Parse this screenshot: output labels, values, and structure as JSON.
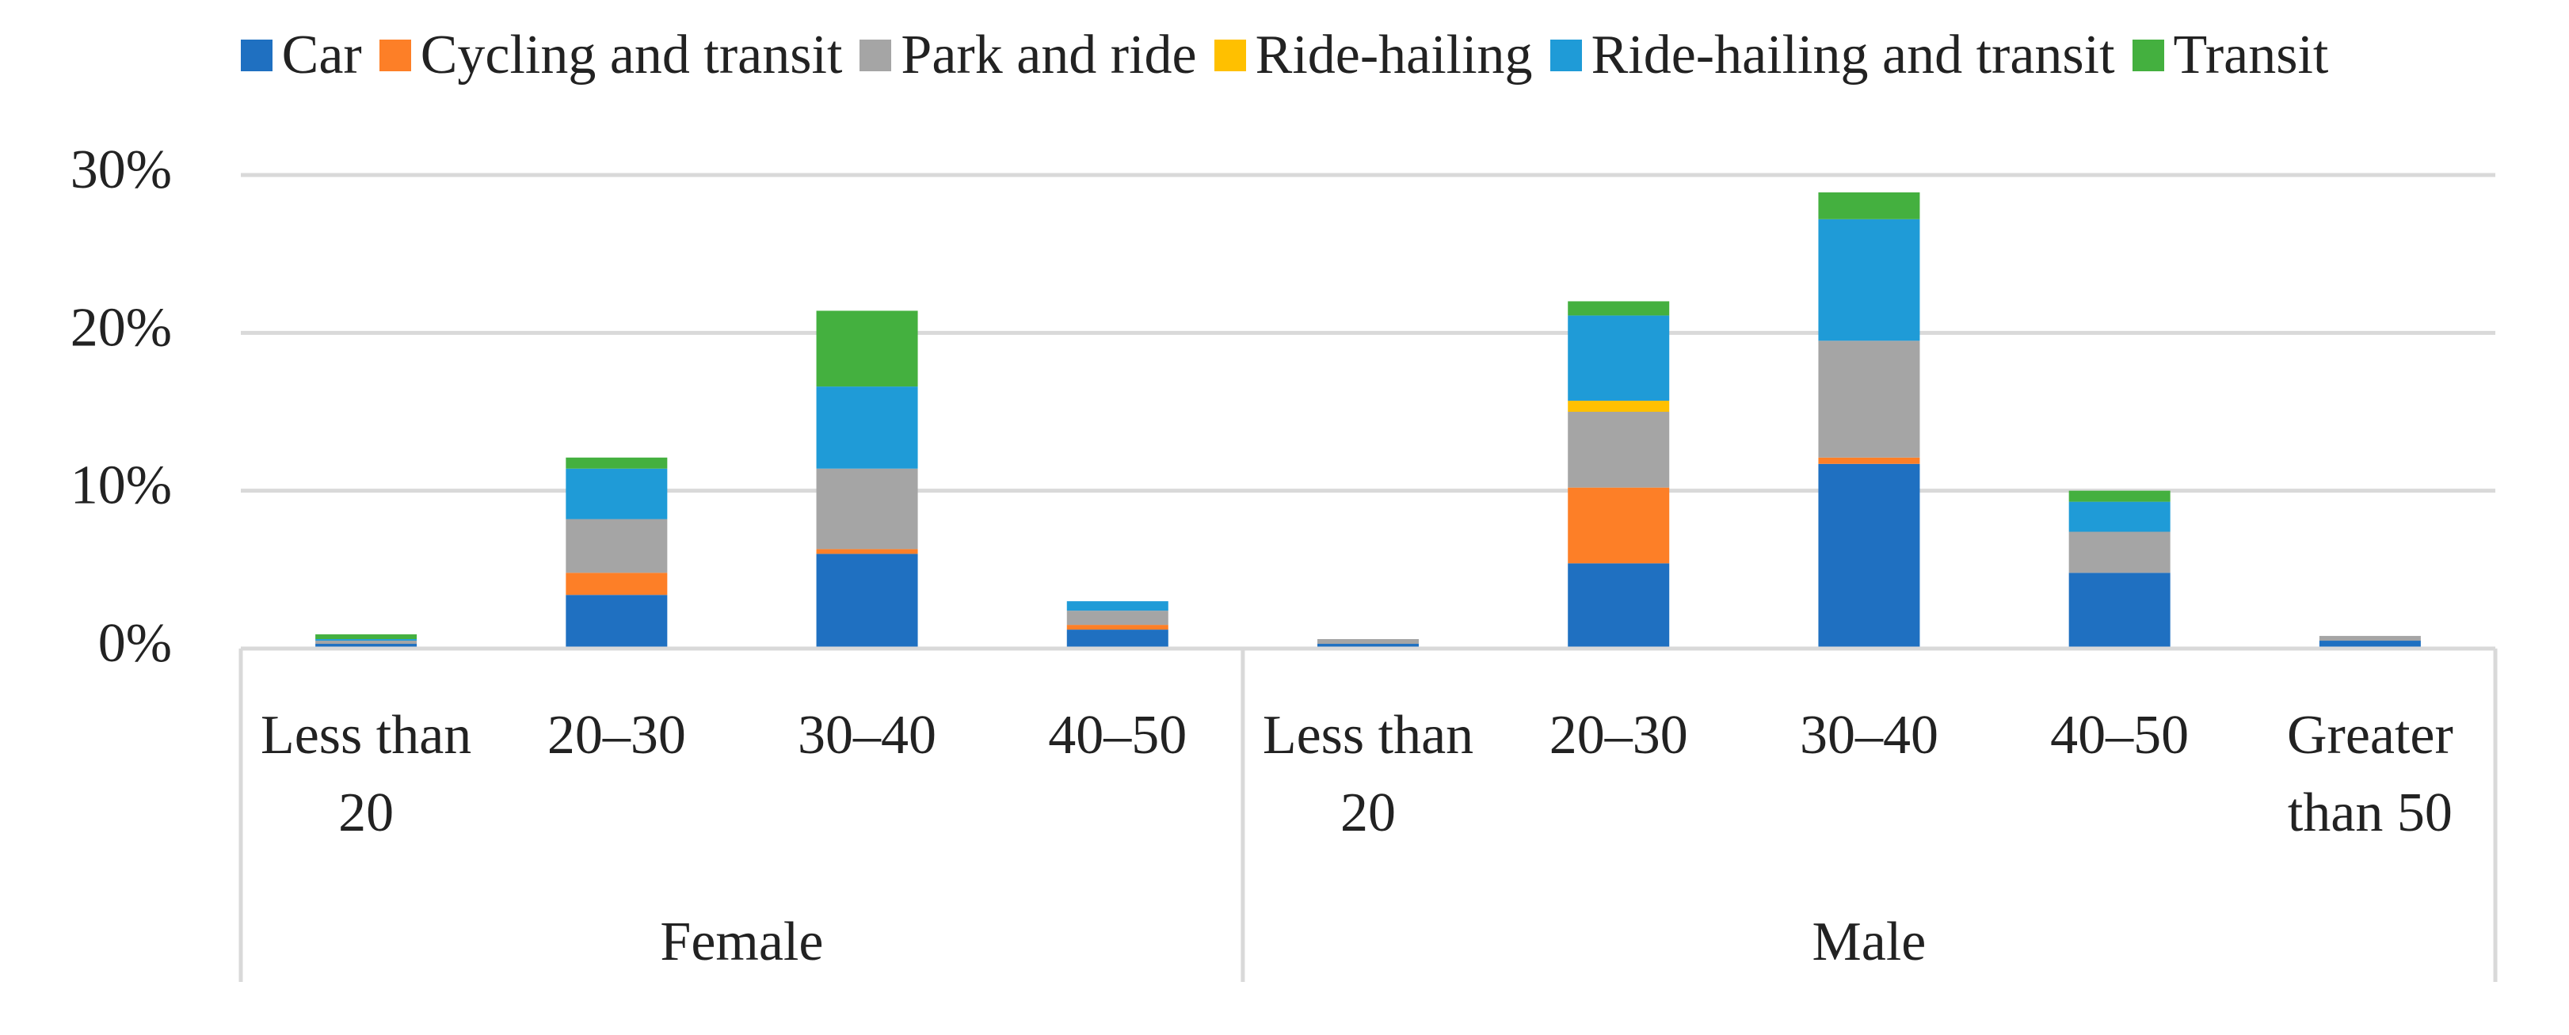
{
  "chart_data": {
    "type": "stacked_bar",
    "groups": [
      {
        "name": "Female",
        "categories": [
          "Less than 20",
          "20–30",
          "30–40",
          "40–50"
        ]
      },
      {
        "name": "Male",
        "categories": [
          "Less than 20",
          "20–30",
          "30–40",
          "40–50",
          "Greater than 50"
        ]
      }
    ],
    "series": [
      {
        "name": "Car",
        "color": "#1f70c1",
        "values": [
          0.3,
          3.4,
          6.0,
          1.2,
          0.3,
          5.4,
          11.7,
          4.8,
          0.5
        ]
      },
      {
        "name": "Cycling and transit",
        "color": "#fd7f27",
        "values": [
          0,
          1.4,
          0.3,
          0.3,
          0,
          4.8,
          0.4,
          0,
          0
        ]
      },
      {
        "name": "Park and ride",
        "color": "#a5a5a5",
        "values": [
          0.2,
          3.4,
          5.1,
          0.9,
          0.3,
          4.8,
          7.4,
          2.6,
          0.3
        ]
      },
      {
        "name": "Ride-hailing",
        "color": "#ffc000",
        "values": [
          0,
          0,
          0,
          0,
          0,
          0.7,
          0,
          0,
          0
        ]
      },
      {
        "name": "Ride-hailing and transit",
        "color": "#1f9bd7",
        "values": [
          0.1,
          3.2,
          5.2,
          0.6,
          0,
          5.4,
          7.7,
          1.9,
          0
        ]
      },
      {
        "name": "Transit",
        "color": "#44b03f",
        "values": [
          0.3,
          0.7,
          4.8,
          0,
          0,
          0.9,
          1.7,
          0.7,
          0
        ]
      }
    ],
    "ylim": [
      0,
      30
    ],
    "yticks": [
      {
        "value": 0,
        "label": "0%"
      },
      {
        "value": 10,
        "label": "10%"
      },
      {
        "value": 20,
        "label": "20%"
      },
      {
        "value": 30,
        "label": "30%"
      }
    ],
    "grid": true
  }
}
